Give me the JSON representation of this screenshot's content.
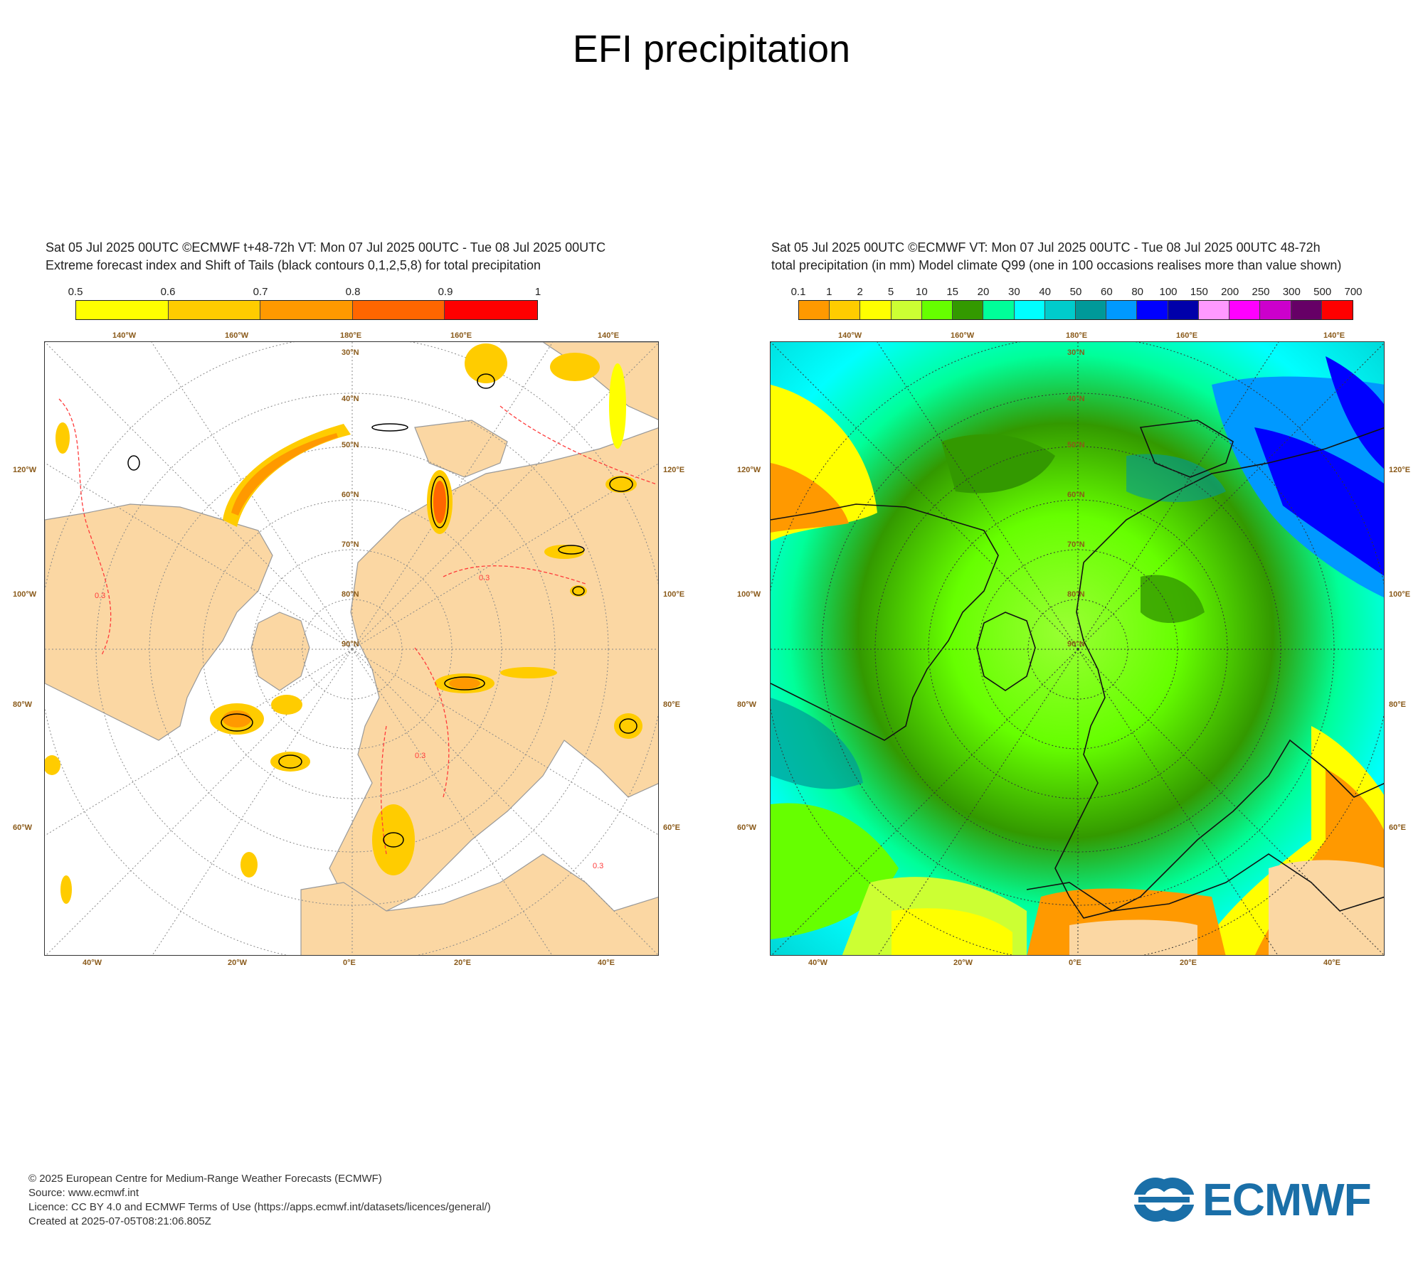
{
  "page": {
    "title": "EFI precipitation"
  },
  "left_panel": {
    "header_line1": "Sat 05 Jul 2025 00UTC ©ECMWF t+48-72h  VT: Mon 07 Jul 2025 00UTC - Tue 08 Jul 2025 00UTC",
    "header_line2": "Extreme forecast index and Shift of Tails (black contours 0,1,2,5,8) for total precipitation",
    "colorbar": {
      "labels": [
        "0.5",
        "0.6",
        "0.7",
        "0.8",
        "0.9",
        "1"
      ],
      "colors": [
        "#ffff00",
        "#ffcc00",
        "#ff9900",
        "#ff6600",
        "#ff0000"
      ]
    },
    "lon_labels_top": [
      "140°W",
      "160°W",
      "180°E",
      "160°E",
      "140°E"
    ],
    "lon_labels_bottom": [
      "40°W",
      "20°W",
      "0°E",
      "20°E",
      "40°E"
    ],
    "lon_labels_left": [
      "120°W",
      "100°W",
      "80°W",
      "60°W"
    ],
    "lon_labels_right": [
      "120°E",
      "100°E",
      "80°E",
      "60°E"
    ],
    "lat_labels": [
      "30°N",
      "40°N",
      "50°N",
      "60°N",
      "70°N",
      "80°N",
      "90°N"
    ],
    "contour_label": "0.3"
  },
  "right_panel": {
    "header_line1": "Sat 05 Jul 2025 00UTC ©ECMWF VT: Mon 07 Jul 2025 00UTC - Tue 08 Jul 2025 00UTC   48-72h",
    "header_line2": "total precipitation (in mm)  Model climate Q99 (one in 100 occasions realises more than value shown)",
    "colorbar": {
      "labels": [
        "0.1",
        "1",
        "2",
        "5",
        "10",
        "15",
        "20",
        "30",
        "40",
        "50",
        "60",
        "80",
        "100",
        "150",
        "200",
        "250",
        "300",
        "500",
        "700"
      ],
      "colors": [
        "#ff9900",
        "#ffcc00",
        "#ffff00",
        "#ccff33",
        "#66ff00",
        "#339900",
        "#00ff99",
        "#00ffff",
        "#00cccc",
        "#009999",
        "#0099ff",
        "#0000ff",
        "#0000aa",
        "#ff99ff",
        "#ff00ff",
        "#cc00cc",
        "#660066",
        "#ff0000"
      ]
    },
    "lon_labels_top": [
      "140°W",
      "160°W",
      "180°E",
      "160°E",
      "140°E"
    ],
    "lon_labels_bottom": [
      "40°W",
      "20°W",
      "0°E",
      "20°E",
      "40°E"
    ],
    "lon_labels_left": [
      "120°W",
      "100°W",
      "80°W",
      "60°W"
    ],
    "lon_labels_right": [
      "120°E",
      "100°E",
      "80°E",
      "60°E"
    ],
    "lat_labels": [
      "30°N",
      "40°N",
      "50°N",
      "60°N",
      "70°N",
      "80°N",
      "90°N"
    ]
  },
  "footer": {
    "line1": "© 2025 European Centre for Medium-Range Weather Forecasts (ECMWF)",
    "line2": "Source: www.ecmwf.int",
    "line3": "Licence: CC BY 4.0 and ECMWF Terms of Use (https://apps.ecmwf.int/datasets/licences/general/)",
    "line4": "Created at 2025-07-05T08:21:06.805Z"
  },
  "logo": {
    "text": "ECMWF",
    "color": "#1a6fa8"
  }
}
